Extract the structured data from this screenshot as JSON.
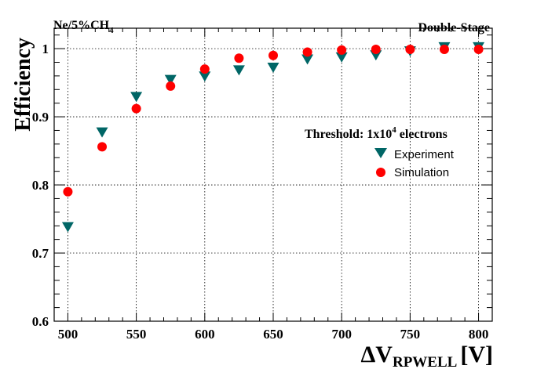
{
  "chart_data": {
    "type": "scatter",
    "title_left": "Ne/5%CH",
    "title_left_sub": "4",
    "title_right": "Double-Stage",
    "ylabel": "Efficiency",
    "xlabel": "ΔV",
    "xlabel_sub": "RPWELL",
    "xlabel_unit": "[V]",
    "xlim": [
      490,
      810
    ],
    "ylim": [
      0.6,
      1.03
    ],
    "x_ticks": [
      500,
      550,
      600,
      650,
      700,
      750,
      800
    ],
    "y_ticks": [
      0.6,
      0.7,
      0.8,
      0.9,
      1.0
    ],
    "x_tick_labels": [
      "500",
      "550",
      "600",
      "650",
      "700",
      "750",
      "800"
    ],
    "y_tick_labels": [
      "0.6",
      "0.7",
      "0.8",
      "0.9",
      "1"
    ],
    "grid": true,
    "legend": {
      "header": "Threshold: 1x10",
      "header_exp": "4",
      "header_tail": " electrons",
      "position": "center-right"
    },
    "x": [
      500,
      525,
      550,
      575,
      600,
      625,
      650,
      675,
      700,
      725,
      750,
      775,
      800
    ],
    "series": [
      {
        "name": "Experiment",
        "marker": "triangle-down",
        "color": "#006666",
        "values": [
          0.738,
          0.877,
          0.929,
          0.954,
          0.959,
          0.968,
          0.972,
          0.984,
          0.987,
          0.99,
          0.996,
          1.002,
          1.002
        ]
      },
      {
        "name": "Simulation",
        "marker": "circle",
        "color": "#ff0000",
        "values": [
          0.79,
          0.856,
          0.912,
          0.945,
          0.97,
          0.986,
          0.99,
          0.995,
          0.998,
          0.999,
          0.999,
          0.999,
          0.999
        ]
      }
    ]
  }
}
